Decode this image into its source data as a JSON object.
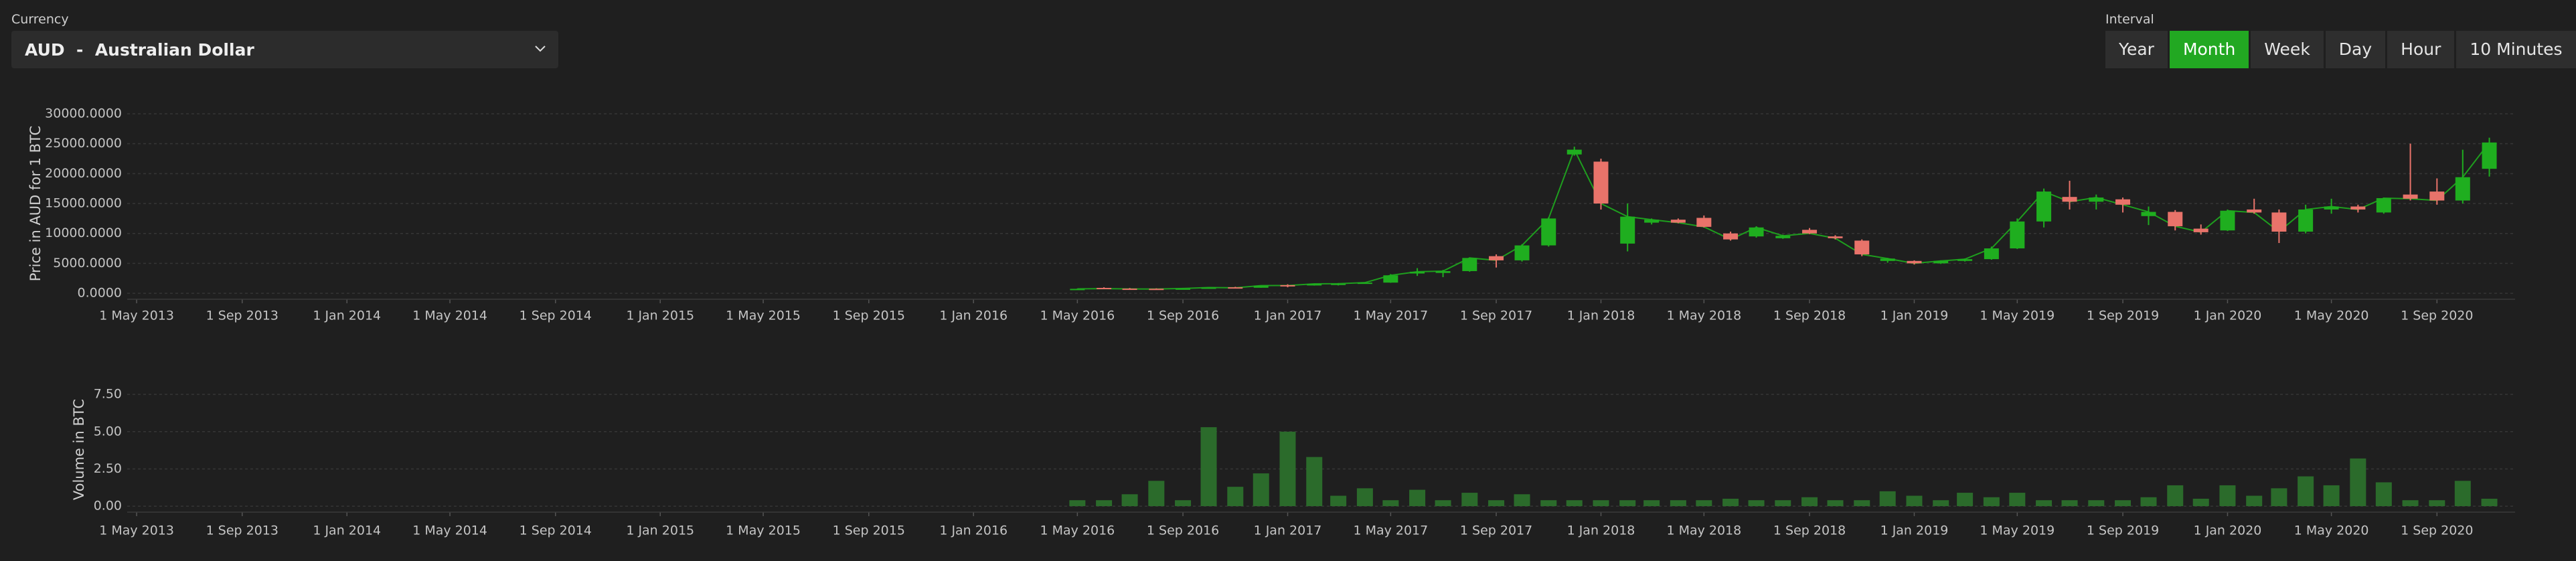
{
  "currency_selector": {
    "label": "Currency",
    "value": "AUD  -  Australian Dollar"
  },
  "interval_selector": {
    "label": "Interval",
    "options": [
      "Year",
      "Month",
      "Week",
      "Day",
      "Hour",
      "10 Minutes"
    ],
    "selected_index": 1
  },
  "chart_data": [
    {
      "type": "candlestick",
      "y_label": "Price in AUD for 1 BTC",
      "x": [
        "2016-05-01",
        "2016-06-01",
        "2016-07-01",
        "2016-08-01",
        "2016-09-01",
        "2016-10-01",
        "2016-11-01",
        "2016-12-01",
        "2017-01-01",
        "2017-02-01",
        "2017-03-01",
        "2017-04-01",
        "2017-05-01",
        "2017-06-01",
        "2017-07-01",
        "2017-08-01",
        "2017-09-01",
        "2017-10-01",
        "2017-11-01",
        "2017-12-01",
        "2018-01-01",
        "2018-02-01",
        "2018-03-01",
        "2018-04-01",
        "2018-05-01",
        "2018-06-01",
        "2018-07-01",
        "2018-08-01",
        "2018-09-01",
        "2018-10-01",
        "2018-11-01",
        "2018-12-01",
        "2019-01-01",
        "2019-02-01",
        "2019-03-01",
        "2019-04-01",
        "2019-05-01",
        "2019-06-01",
        "2019-07-01",
        "2019-08-01",
        "2019-09-01",
        "2019-10-01",
        "2019-11-01",
        "2019-12-01",
        "2020-01-01",
        "2020-02-01",
        "2020-03-01",
        "2020-04-01",
        "2020-05-01",
        "2020-06-01",
        "2020-07-01",
        "2020-08-01",
        "2020-09-01",
        "2020-10-01",
        "2020-11-01"
      ],
      "open": [
        600,
        900,
        780,
        760,
        700,
        800,
        1000,
        920,
        1360,
        1300,
        1570,
        1600,
        1780,
        3300,
        3400,
        3700,
        6200,
        5500,
        8000,
        23200,
        22000,
        8300,
        11800,
        12300,
        12600,
        10000,
        9500,
        9200,
        10600,
        9500,
        8800,
        5400,
        5400,
        5000,
        5400,
        5700,
        7500,
        12000,
        16100,
        15300,
        15700,
        12900,
        13600,
        10800,
        10500,
        14000,
        13500,
        10300,
        14000,
        14500,
        13500,
        16500,
        17000,
        15500,
        20800
      ],
      "high": [
        780,
        1000,
        880,
        820,
        840,
        980,
        1080,
        1300,
        1500,
        1600,
        1700,
        1800,
        3200,
        4200,
        3900,
        6000,
        6500,
        8200,
        12700,
        24500,
        22500,
        15000,
        12500,
        12500,
        13000,
        10300,
        11200,
        9800,
        10900,
        9700,
        9000,
        5900,
        5500,
        5500,
        5800,
        7800,
        12500,
        17500,
        18800,
        16500,
        16000,
        14500,
        13900,
        11500,
        14000,
        15800,
        14000,
        14800,
        15800,
        14800,
        16000,
        25000,
        19200,
        24000,
        26000
      ],
      "low": [
        580,
        700,
        680,
        680,
        690,
        790,
        880,
        910,
        1000,
        1280,
        1300,
        1580,
        1750,
        2900,
        2700,
        3600,
        4300,
        5300,
        7800,
        23000,
        14000,
        7000,
        11500,
        11700,
        11000,
        8800,
        9300,
        9100,
        9900,
        9000,
        6200,
        5100,
        4800,
        4900,
        5300,
        5600,
        7400,
        11000,
        14000,
        14000,
        13500,
        11400,
        10500,
        9800,
        10400,
        13300,
        8400,
        10000,
        13300,
        13500,
        13300,
        15500,
        14800,
        15000,
        19500
      ],
      "close": [
        740,
        780,
        720,
        700,
        800,
        960,
        920,
        1280,
        1300,
        1570,
        1600,
        1780,
        3000,
        3600,
        3700,
        5900,
        5500,
        8000,
        12500,
        24000,
        15000,
        12800,
        12300,
        11800,
        11100,
        9000,
        11000,
        9600,
        10000,
        9200,
        6500,
        5800,
        5000,
        5400,
        5700,
        7500,
        12000,
        17000,
        15300,
        16000,
        14800,
        13600,
        11200,
        10200,
        13800,
        13500,
        10300,
        14000,
        14500,
        14000,
        15900,
        15800,
        15500,
        19400,
        25200
      ],
      "up_color": "#1fae1f",
      "down_color": "#e8736a",
      "line_color": "#1e9e1e",
      "xlim": [
        "2013-04-20",
        "2020-12-01"
      ],
      "xticks": [
        {
          "value": "2013-05-01",
          "label": "1 May 2013"
        },
        {
          "value": "2013-09-01",
          "label": "1 Sep 2013"
        },
        {
          "value": "2014-01-01",
          "label": "1 Jan 2014"
        },
        {
          "value": "2014-05-01",
          "label": "1 May 2014"
        },
        {
          "value": "2014-09-01",
          "label": "1 Sep 2014"
        },
        {
          "value": "2015-01-01",
          "label": "1 Jan 2015"
        },
        {
          "value": "2015-05-01",
          "label": "1 May 2015"
        },
        {
          "value": "2015-09-01",
          "label": "1 Sep 2015"
        },
        {
          "value": "2016-01-01",
          "label": "1 Jan 2016"
        },
        {
          "value": "2016-05-01",
          "label": "1 May 2016"
        },
        {
          "value": "2016-09-01",
          "label": "1 Sep 2016"
        },
        {
          "value": "2017-01-01",
          "label": "1 Jan 2017"
        },
        {
          "value": "2017-05-01",
          "label": "1 May 2017"
        },
        {
          "value": "2017-09-01",
          "label": "1 Sep 2017"
        },
        {
          "value": "2018-01-01",
          "label": "1 Jan 2018"
        },
        {
          "value": "2018-05-01",
          "label": "1 May 2018"
        },
        {
          "value": "2018-09-01",
          "label": "1 Sep 2018"
        },
        {
          "value": "2019-01-01",
          "label": "1 Jan 2019"
        },
        {
          "value": "2019-05-01",
          "label": "1 May 2019"
        },
        {
          "value": "2019-09-01",
          "label": "1 Sep 2019"
        },
        {
          "value": "2020-01-01",
          "label": "1 Jan 2020"
        },
        {
          "value": "2020-05-01",
          "label": "1 May 2020"
        },
        {
          "value": "2020-09-01",
          "label": "1 Sep 2020"
        }
      ],
      "ylim": [
        -1000,
        31000
      ],
      "yticks": [
        {
          "value": 0,
          "label": "0.0000"
        },
        {
          "value": 5000,
          "label": "5000.0000"
        },
        {
          "value": 10000,
          "label": "10000.0000"
        },
        {
          "value": 15000,
          "label": "15000.0000"
        },
        {
          "value": 20000,
          "label": "20000.0000"
        },
        {
          "value": 25000,
          "label": "25000.0000"
        },
        {
          "value": 30000,
          "label": "30000.0000"
        }
      ],
      "grid": true
    },
    {
      "type": "bar",
      "y_label": "Volume in BTC",
      "x": [
        "2016-05-01",
        "2016-06-01",
        "2016-07-01",
        "2016-08-01",
        "2016-09-01",
        "2016-10-01",
        "2016-11-01",
        "2016-12-01",
        "2017-01-01",
        "2017-02-01",
        "2017-03-01",
        "2017-04-01",
        "2017-05-01",
        "2017-06-01",
        "2017-07-01",
        "2017-08-01",
        "2017-09-01",
        "2017-10-01",
        "2017-11-01",
        "2017-12-01",
        "2018-01-01",
        "2018-02-01",
        "2018-03-01",
        "2018-04-01",
        "2018-05-01",
        "2018-06-01",
        "2018-07-01",
        "2018-08-01",
        "2018-09-01",
        "2018-10-01",
        "2018-11-01",
        "2018-12-01",
        "2019-01-01",
        "2019-02-01",
        "2019-03-01",
        "2019-04-01",
        "2019-05-01",
        "2019-06-01",
        "2019-07-01",
        "2019-08-01",
        "2019-09-01",
        "2019-10-01",
        "2019-11-01",
        "2019-12-01",
        "2020-01-01",
        "2020-02-01",
        "2020-03-01",
        "2020-04-01",
        "2020-05-01",
        "2020-06-01",
        "2020-07-01",
        "2020-08-01",
        "2020-09-01",
        "2020-10-01",
        "2020-11-01"
      ],
      "values": [
        0.4,
        0.4,
        0.8,
        1.7,
        0.4,
        5.3,
        1.3,
        2.2,
        5.0,
        3.3,
        0.7,
        1.2,
        0.4,
        1.1,
        0.4,
        0.9,
        0.4,
        0.8,
        0.4,
        0.4,
        0.4,
        0.4,
        0.4,
        0.4,
        0.4,
        0.5,
        0.4,
        0.4,
        0.6,
        0.4,
        0.4,
        1.0,
        0.7,
        0.4,
        0.9,
        0.6,
        0.9,
        0.4,
        0.4,
        0.4,
        0.4,
        0.6,
        1.4,
        0.5,
        1.4,
        0.7,
        1.2,
        2.0,
        1.4,
        3.2,
        1.6,
        0.4,
        0.4,
        1.7,
        0.5
      ],
      "color": "#2b6b2b",
      "xlim": [
        "2013-04-20",
        "2020-12-01"
      ],
      "xticks": [
        {
          "value": "2013-05-01",
          "label": "1 May 2013"
        },
        {
          "value": "2013-09-01",
          "label": "1 Sep 2013"
        },
        {
          "value": "2014-01-01",
          "label": "1 Jan 2014"
        },
        {
          "value": "2014-05-01",
          "label": "1 May 2014"
        },
        {
          "value": "2014-09-01",
          "label": "1 Sep 2014"
        },
        {
          "value": "2015-01-01",
          "label": "1 Jan 2015"
        },
        {
          "value": "2015-05-01",
          "label": "1 May 2015"
        },
        {
          "value": "2015-09-01",
          "label": "1 Sep 2015"
        },
        {
          "value": "2016-01-01",
          "label": "1 Jan 2016"
        },
        {
          "value": "2016-05-01",
          "label": "1 May 2016"
        },
        {
          "value": "2016-09-01",
          "label": "1 Sep 2016"
        },
        {
          "value": "2017-01-01",
          "label": "1 Jan 2017"
        },
        {
          "value": "2017-05-01",
          "label": "1 May 2017"
        },
        {
          "value": "2017-09-01",
          "label": "1 Sep 2017"
        },
        {
          "value": "2018-01-01",
          "label": "1 Jan 2018"
        },
        {
          "value": "2018-05-01",
          "label": "1 May 2018"
        },
        {
          "value": "2018-09-01",
          "label": "1 Sep 2018"
        },
        {
          "value": "2019-01-01",
          "label": "1 Jan 2019"
        },
        {
          "value": "2019-05-01",
          "label": "1 May 2019"
        },
        {
          "value": "2019-09-01",
          "label": "1 Sep 2019"
        },
        {
          "value": "2020-01-01",
          "label": "1 Jan 2020"
        },
        {
          "value": "2020-05-01",
          "label": "1 May 2020"
        },
        {
          "value": "2020-09-01",
          "label": "1 Sep 2020"
        }
      ],
      "ylim": [
        -0.4,
        8.0
      ],
      "yticks": [
        {
          "value": 0,
          "label": "0.00"
        },
        {
          "value": 2.5,
          "label": "2.50"
        },
        {
          "value": 5,
          "label": "5.00"
        },
        {
          "value": 7.5,
          "label": "7.50"
        }
      ],
      "grid": true
    }
  ]
}
